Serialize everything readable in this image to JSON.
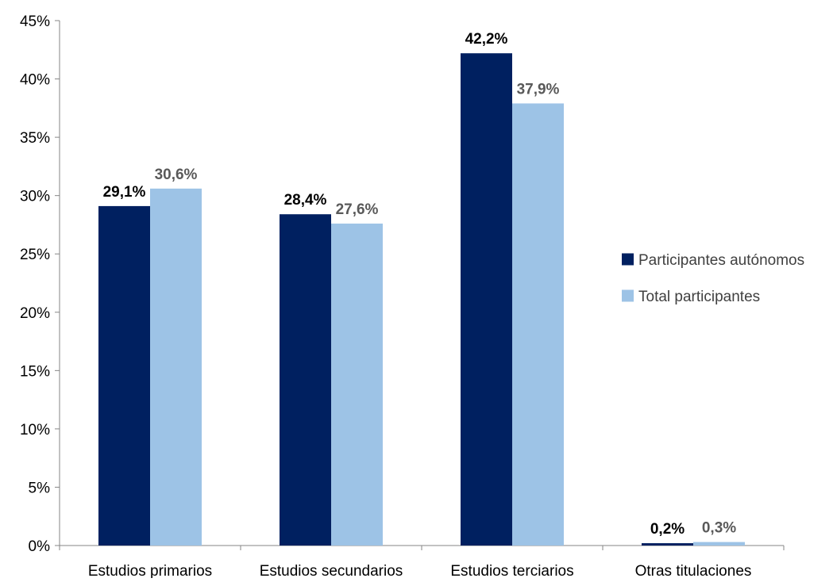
{
  "chart_data": {
    "type": "bar",
    "categories": [
      "Estudios primarios",
      "Estudios secundarios",
      "Estudios terciarios",
      "Otras titulaciones"
    ],
    "series": [
      {
        "name": "Participantes autónomos",
        "values": [
          29.1,
          28.4,
          42.2,
          0.2
        ],
        "labels": [
          "29,1%",
          "28,4%",
          "42,2%",
          "0,2%"
        ],
        "color": "#002060",
        "label_color": "#000000"
      },
      {
        "name": "Total participantes",
        "values": [
          30.6,
          27.6,
          37.9,
          0.3
        ],
        "labels": [
          "30,6%",
          "27,6%",
          "37,9%",
          "0,3%"
        ],
        "color": "#9DC3E6",
        "label_color": "#595959"
      }
    ],
    "ylim": [
      0,
      45
    ],
    "yticks": [
      0,
      5,
      10,
      15,
      20,
      25,
      30,
      35,
      40,
      45
    ],
    "ytick_labels": [
      "0%",
      "5%",
      "10%",
      "15%",
      "20%",
      "25%",
      "30%",
      "35%",
      "40%",
      "45%"
    ],
    "title": "",
    "xlabel": "",
    "ylabel": "",
    "grid": false,
    "legend_position": "right"
  }
}
